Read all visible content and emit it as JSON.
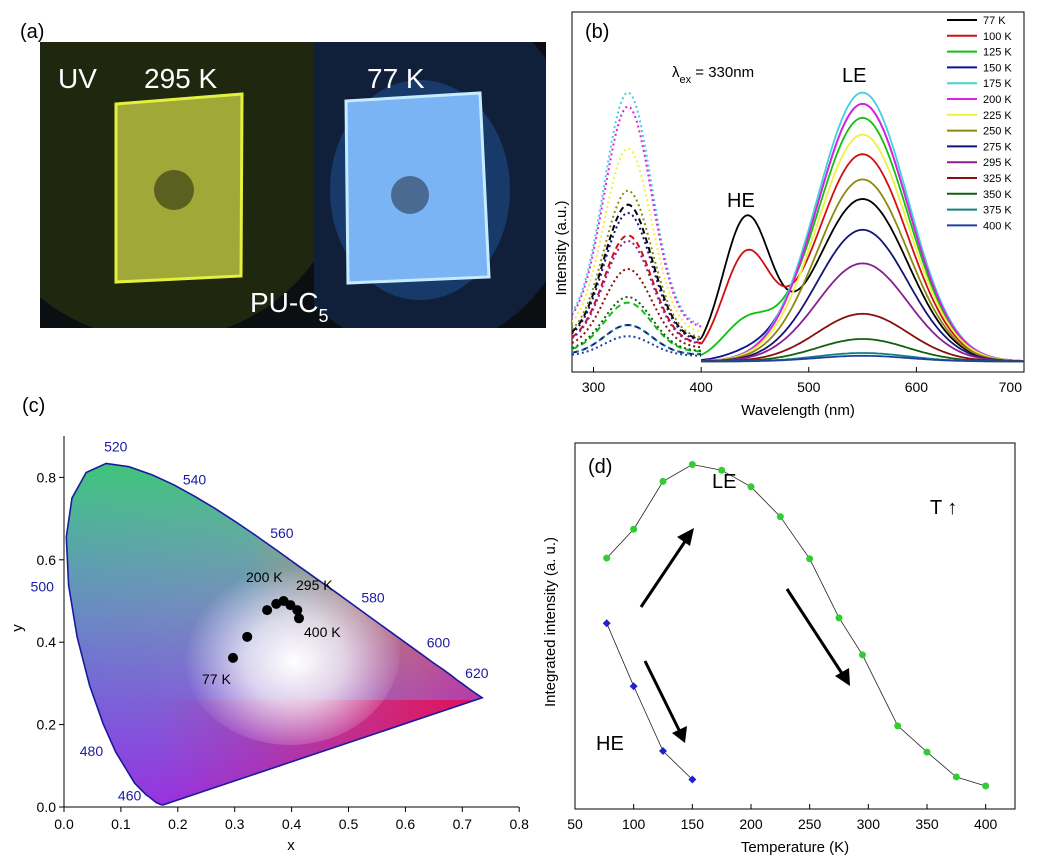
{
  "panel_labels": [
    "(a)",
    "(b)",
    "(c)",
    "(d)"
  ],
  "photo": {
    "left_label_uv": "UV",
    "left_label_temp": "295 K",
    "right_label_temp": "77 K",
    "sample_label": "PU-C",
    "sample_subscript": "5",
    "left_color": "#c8d84a",
    "right_color": "#5aa8f0"
  },
  "chart_data": [
    {
      "panel": "(b)",
      "type": "line",
      "xlabel": "Wavelength (nm)",
      "ylabel": "Intensity (a.u.)",
      "xlim": [
        280,
        700
      ],
      "ylim": [
        0,
        1
      ],
      "xticks": [
        "300",
        "400",
        "500",
        "600",
        "700"
      ],
      "annotation_excitation": "λex = 330nm",
      "annotation_excitation_main": "λ",
      "annotation_excitation_sub": "ex",
      "annotation_excitation_tail": " = 330nm",
      "annotation_he": "HE",
      "annotation_le": "LE",
      "grid": false,
      "legend_placement": "top-right",
      "series": [
        {
          "name": "77 K",
          "color": "#000000",
          "exc": 0.55,
          "he": 0.5,
          "le": 0.58
        },
        {
          "name": "100 K",
          "color": "#d01010",
          "exc": 0.44,
          "he": 0.37,
          "le": 0.74
        },
        {
          "name": "125 K",
          "color": "#10c010",
          "exc": 0.2,
          "he": 0.13,
          "le": 0.87
        },
        {
          "name": "150 K",
          "color": "#101090",
          "exc": 0.12,
          "he": 0.02,
          "le": 0.92
        },
        {
          "name": "175 K",
          "color": "#40d0e0",
          "exc": 0.95,
          "he": 0.0,
          "le": 0.96
        },
        {
          "name": "200 K",
          "color": "#e020e0",
          "exc": 0.9,
          "he": 0.0,
          "le": 0.92
        },
        {
          "name": "225 K",
          "color": "#f0f040",
          "exc": 0.75,
          "he": 0.0,
          "le": 0.81
        },
        {
          "name": "250 K",
          "color": "#8a8a10",
          "exc": 0.6,
          "he": 0.0,
          "le": 0.65
        },
        {
          "name": "275 K",
          "color": "#151575",
          "exc": 0.52,
          "he": 0.0,
          "le": 0.47
        },
        {
          "name": "295 K",
          "color": "#8a2090",
          "exc": 0.42,
          "he": 0.0,
          "le": 0.35
        },
        {
          "name": "325 K",
          "color": "#8a1010",
          "exc": 0.32,
          "he": 0.0,
          "le": 0.17
        },
        {
          "name": "350 K",
          "color": "#106010",
          "exc": 0.22,
          "he": 0.0,
          "le": 0.08
        },
        {
          "name": "375 K",
          "color": "#108080",
          "exc": 0.12,
          "he": 0.0,
          "le": 0.03
        },
        {
          "name": "400 K",
          "color": "#2040a0",
          "exc": 0.08,
          "he": 0.0,
          "le": 0.02
        }
      ]
    },
    {
      "panel": "(c)",
      "type": "scatter",
      "xlabel": "x",
      "ylabel": "y",
      "xlim": [
        0.0,
        0.8
      ],
      "ylim": [
        0.0,
        0.9
      ],
      "xticks": [
        "0.0",
        "0.1",
        "0.2",
        "0.3",
        "0.4",
        "0.5",
        "0.6",
        "0.7",
        "0.8"
      ],
      "yticks": [
        "0.0",
        "0.2",
        "0.4",
        "0.6",
        "0.8"
      ],
      "wavelength_labels": [
        {
          "text": "460",
          "x": 0.144,
          "y": 0.03
        },
        {
          "text": "480",
          "x": 0.091,
          "y": 0.133
        },
        {
          "text": "500",
          "x": 0.008,
          "y": 0.538
        },
        {
          "text": "520",
          "x": 0.074,
          "y": 0.834
        },
        {
          "text": "540",
          "x": 0.23,
          "y": 0.754
        },
        {
          "text": "560",
          "x": 0.373,
          "y": 0.624
        },
        {
          "text": "580",
          "x": 0.512,
          "y": 0.487
        },
        {
          "text": "600",
          "x": 0.627,
          "y": 0.372
        },
        {
          "text": "620",
          "x": 0.691,
          "y": 0.308
        }
      ],
      "point_labels": [
        "77 K",
        "200 K",
        "295 K",
        "400 K"
      ],
      "points": [
        {
          "x": 0.297,
          "y": 0.362
        },
        {
          "x": 0.322,
          "y": 0.413
        },
        {
          "x": 0.357,
          "y": 0.478
        },
        {
          "x": 0.373,
          "y": 0.493
        },
        {
          "x": 0.386,
          "y": 0.5
        },
        {
          "x": 0.398,
          "y": 0.49
        },
        {
          "x": 0.41,
          "y": 0.478
        },
        {
          "x": 0.413,
          "y": 0.458
        }
      ],
      "point_color": "#000000",
      "locus_color": "#1a1aa0"
    },
    {
      "panel": "(d)",
      "type": "line",
      "xlabel": "Temperature (K)",
      "ylabel": "Integrated intensity (a. u.)",
      "xlim": [
        50,
        425
      ],
      "ylim": [
        0,
        1
      ],
      "xticks": [
        "50",
        "100",
        "150",
        "200",
        "250",
        "300",
        "350",
        "400"
      ],
      "annotation_le": "LE",
      "annotation_he": "HE",
      "annotation_t": "T ↑",
      "grid": false,
      "series": [
        {
          "name": "LE",
          "color": "#33cc33",
          "x": [
            77,
            100,
            125,
            150,
            175,
            200,
            225,
            250,
            275,
            295,
            325,
            350,
            375,
            400
          ],
          "y": [
            0.672,
            0.752,
            0.885,
            0.932,
            0.916,
            0.87,
            0.787,
            0.67,
            0.506,
            0.403,
            0.206,
            0.133,
            0.064,
            0.039
          ]
        },
        {
          "name": "HE",
          "color": "#2222cc",
          "x": [
            77,
            100,
            125,
            150
          ],
          "y": [
            0.491,
            0.316,
            0.136,
            0.057
          ]
        }
      ]
    }
  ]
}
